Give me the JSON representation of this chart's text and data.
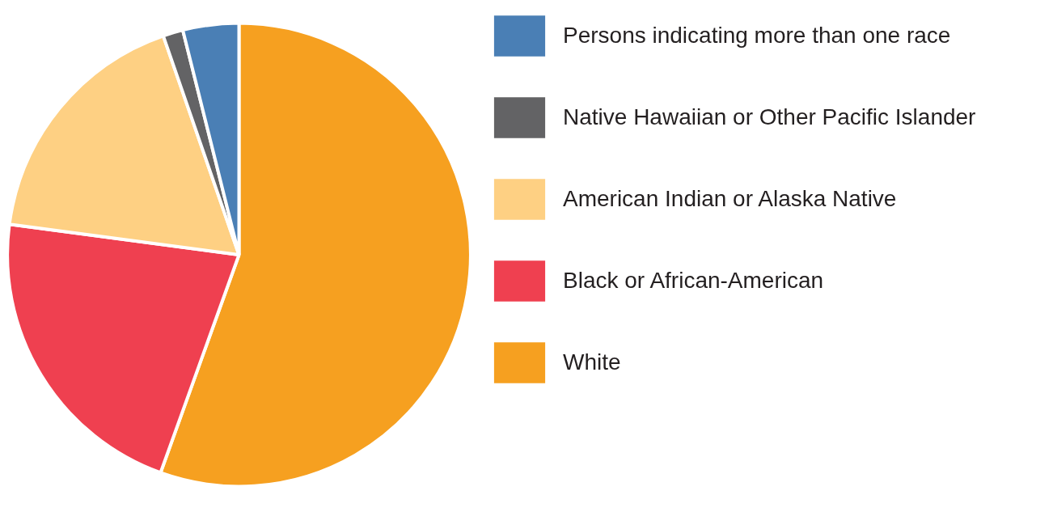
{
  "chart_data": {
    "type": "pie",
    "categories": [
      "White",
      "Black or African-American",
      "American Indian or Alaska Native",
      "Native Hawaiian or Other Pacific Islander",
      "Persons indicating more than one race"
    ],
    "values": [
      55.5,
      21.6,
      17.6,
      1.4,
      3.9
    ],
    "colors": [
      "#f6a020",
      "#ef4050",
      "#fed083",
      "#636365",
      "#4a7fb5"
    ],
    "legend": "right"
  }
}
